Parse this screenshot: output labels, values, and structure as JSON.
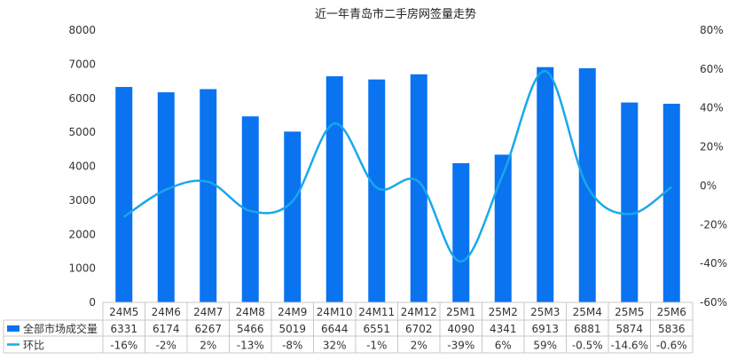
{
  "chart_data": {
    "type": "bar",
    "title": "近一年青岛市二手房网签量走势",
    "categories": [
      "24M5",
      "24M6",
      "24M7",
      "24M8",
      "24M9",
      "24M10",
      "24M11",
      "24M12",
      "25M1",
      "25M2",
      "25M3",
      "25M4",
      "25M5",
      "25M6"
    ],
    "series": [
      {
        "name": "全部市场成交量",
        "type": "bar",
        "axis": "left",
        "values": [
          6331,
          6174,
          6267,
          5466,
          5019,
          6644,
          6551,
          6702,
          4090,
          4341,
          6913,
          6881,
          5874,
          5836
        ],
        "labels": [
          "6331",
          "6174",
          "6267",
          "5466",
          "5019",
          "6644",
          "6551",
          "6702",
          "4090",
          "4341",
          "6913",
          "6881",
          "5874",
          "5836"
        ],
        "color": "#0a73f0"
      },
      {
        "name": "环比",
        "type": "line",
        "axis": "right",
        "values": [
          -16,
          -2,
          2,
          -13,
          -8,
          32,
          -1,
          2,
          -39,
          6,
          59,
          -0.5,
          -14.6,
          -0.6
        ],
        "labels": [
          "-16%",
          "-2%",
          "2%",
          "-13%",
          "-8%",
          "32%",
          "-1%",
          "2%",
          "-39%",
          "6%",
          "59%",
          "-0.5%",
          "-14.6%",
          "-0.6%"
        ],
        "color": "#19a8ea"
      }
    ],
    "y_left": {
      "min": 0,
      "max": 8000,
      "ticks": [
        "0",
        "1000",
        "2000",
        "3000",
        "4000",
        "5000",
        "6000",
        "7000",
        "8000"
      ]
    },
    "y_right": {
      "min": -60,
      "max": 80,
      "ticks": [
        "-60%",
        "-40%",
        "-20%",
        "0%",
        "20%",
        "40%",
        "60%",
        "80%"
      ]
    },
    "grid": false,
    "legend": "data-table"
  }
}
